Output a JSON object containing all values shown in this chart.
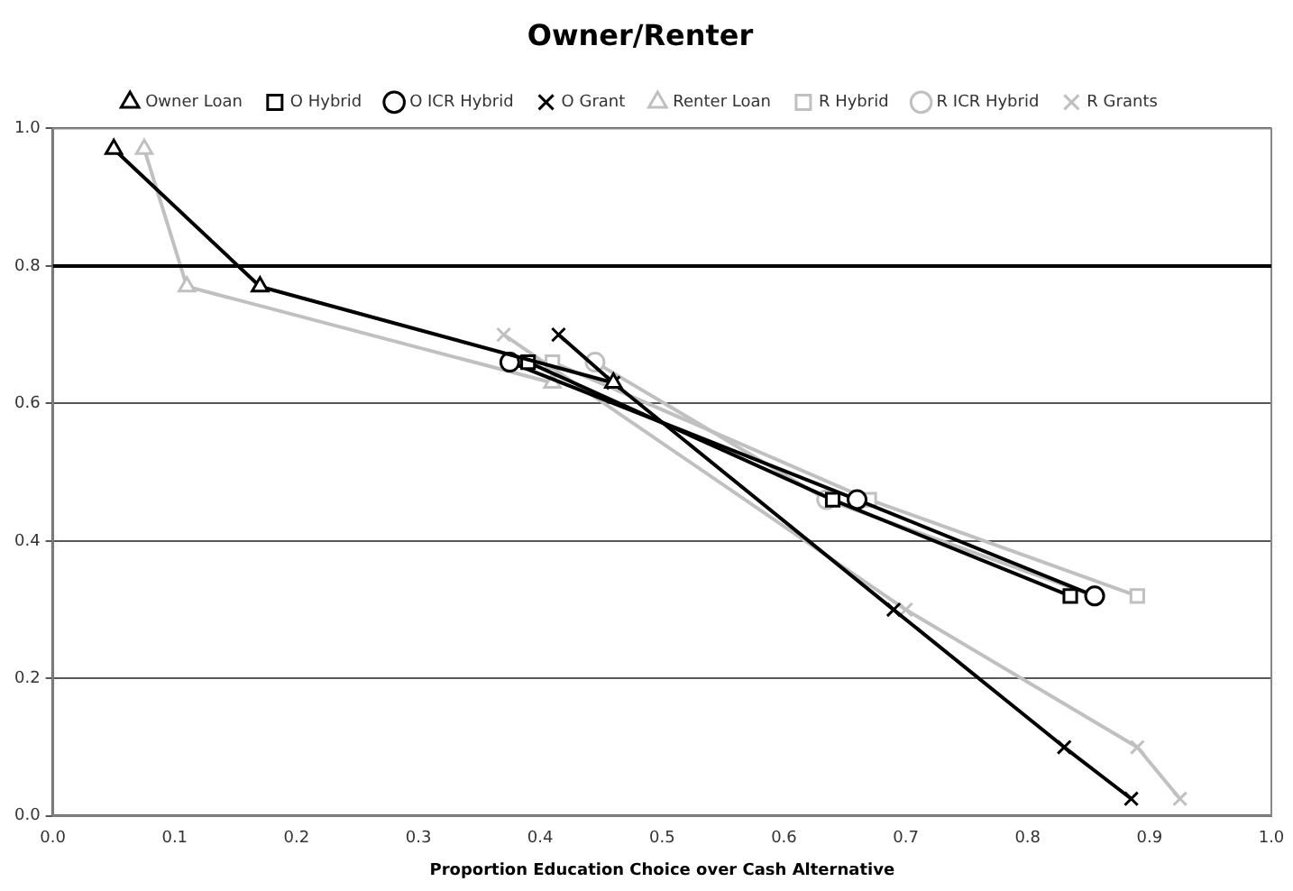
{
  "chart_data": {
    "type": "line",
    "title": "Owner/Renter",
    "xlabel": "Proportion Education Choice over Cash Alternative",
    "series": [
      {
        "name": "Owner Loan",
        "color": "#000000",
        "marker": "triangle",
        "x": [
          0.05,
          0.17,
          0.46
        ],
        "values": [
          0.97,
          0.77,
          0.63
        ]
      },
      {
        "name": "O Hybrid",
        "color": "#000000",
        "marker": "square",
        "x": [
          0.39,
          0.64,
          0.835
        ],
        "values": [
          0.66,
          0.46,
          0.32
        ]
      },
      {
        "name": "O ICR Hybrid",
        "color": "#000000",
        "marker": "circle",
        "x": [
          0.375,
          0.66,
          0.855
        ],
        "values": [
          0.66,
          0.46,
          0.32
        ]
      },
      {
        "name": "O Grant",
        "color": "#000000",
        "marker": "cross",
        "x": [
          0.415,
          0.46,
          0.69,
          0.83,
          0.885
        ],
        "values": [
          0.7,
          0.63,
          0.3,
          0.1,
          0.025
        ]
      },
      {
        "name": "Renter Loan",
        "color": "#c0c0c0",
        "marker": "triangle",
        "x": [
          0.075,
          0.11,
          0.41
        ],
        "values": [
          0.97,
          0.77,
          0.63
        ]
      },
      {
        "name": "R Hybrid",
        "color": "#c0c0c0",
        "marker": "square",
        "x": [
          0.41,
          0.67,
          0.89
        ],
        "values": [
          0.66,
          0.46,
          0.32
        ]
      },
      {
        "name": "R ICR Hybrid",
        "color": "#c0c0c0",
        "marker": "circle",
        "x": [
          0.445,
          0.635,
          0.855
        ],
        "values": [
          0.66,
          0.46,
          0.32
        ]
      },
      {
        "name": "R Grants",
        "color": "#c0c0c0",
        "marker": "cross",
        "x": [
          0.37,
          0.7,
          0.89,
          0.925
        ],
        "values": [
          0.7,
          0.3,
          0.1,
          0.025
        ]
      }
    ],
    "xlim": [
      0,
      1
    ],
    "ylim": [
      0,
      1
    ],
    "xticks": [
      {
        "value": 0,
        "label": "0.0"
      },
      0.1,
      0.2,
      0.3,
      0.4,
      0.5,
      0.6,
      0.7,
      0.8,
      0.9,
      {
        "value": 1,
        "label": "1.0"
      }
    ],
    "yticks": [
      {
        "value": 0,
        "label": "0.0"
      },
      0.2,
      0.4,
      0.6,
      0.8,
      {
        "value": 1,
        "label": "1.0"
      }
    ],
    "grid": "y",
    "legend": "top",
    "line_style": "solid",
    "ref_lines": [
      {
        "axis": "y",
        "value": 0.8,
        "color": "#000000"
      }
    ]
  }
}
